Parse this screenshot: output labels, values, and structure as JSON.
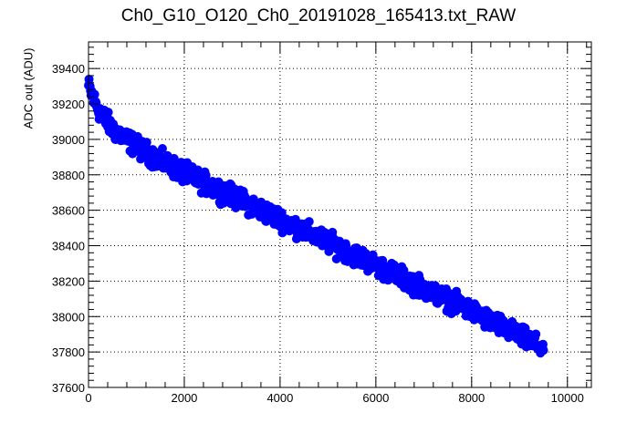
{
  "chart_data": {
    "type": "scatter",
    "title": "Ch0_G10_O120_Ch0_20191028_165413.txt_RAW",
    "xlabel": "",
    "ylabel": "ADC out (ADU)",
    "xlim": [
      0,
      10500
    ],
    "ylim": [
      37600,
      39550
    ],
    "xticks": [
      0,
      2000,
      4000,
      6000,
      8000,
      10000
    ],
    "yticks": [
      37600,
      37800,
      38000,
      38200,
      38400,
      38600,
      38800,
      39000,
      39200,
      39400
    ],
    "grid": true,
    "marker_color": "#0000ff",
    "series": [
      {
        "name": "",
        "trend": {
          "x": [
            0,
            100,
            250,
            500,
            1000,
            1500,
            2000,
            3000,
            4000,
            5000,
            6000,
            7000,
            8000,
            9000,
            9500
          ],
          "y": [
            39300,
            39230,
            39150,
            39060,
            38960,
            38880,
            38810,
            38680,
            38550,
            38420,
            38290,
            38160,
            38030,
            37890,
            37820
          ]
        },
        "spread": 50,
        "x_range": [
          0,
          9500
        ]
      }
    ]
  }
}
